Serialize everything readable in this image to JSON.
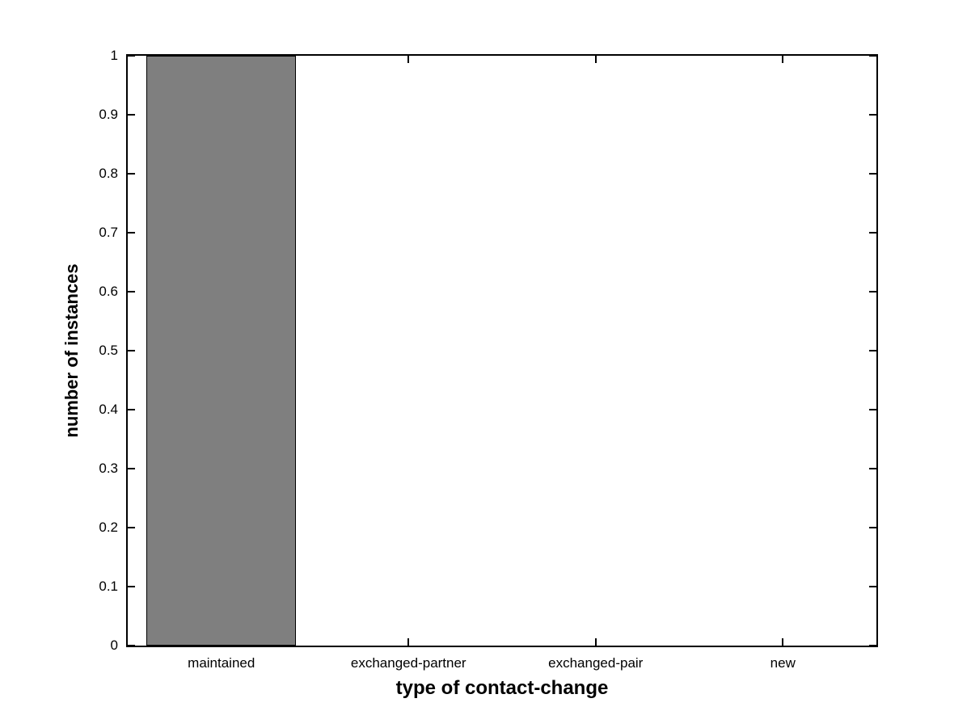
{
  "chart_data": {
    "type": "bar",
    "title": "",
    "categories": [
      "maintained",
      "exchanged-partner",
      "exchanged-pair",
      "new"
    ],
    "values": [
      1,
      0,
      0,
      0
    ],
    "xlabel": "type of contact-change",
    "ylabel": "number of instances",
    "ylim": [
      0,
      1
    ],
    "yticks": [
      0,
      0.1,
      0.2,
      0.3,
      0.4,
      0.5,
      0.6,
      0.7,
      0.8,
      0.9,
      1
    ],
    "ytick_labels": [
      "0",
      "0.1",
      "0.2",
      "0.3",
      "0.4",
      "0.5",
      "0.6",
      "0.7",
      "0.8",
      "0.9",
      "1"
    ],
    "bar_width_fraction": 0.8,
    "bar_color": "#7f7f7f",
    "bar_edge_color": "#000000",
    "axis_color": "#000000",
    "background_color": "#ffffff",
    "grid": false,
    "legend": null,
    "tick_direction": "in",
    "box": true
  }
}
